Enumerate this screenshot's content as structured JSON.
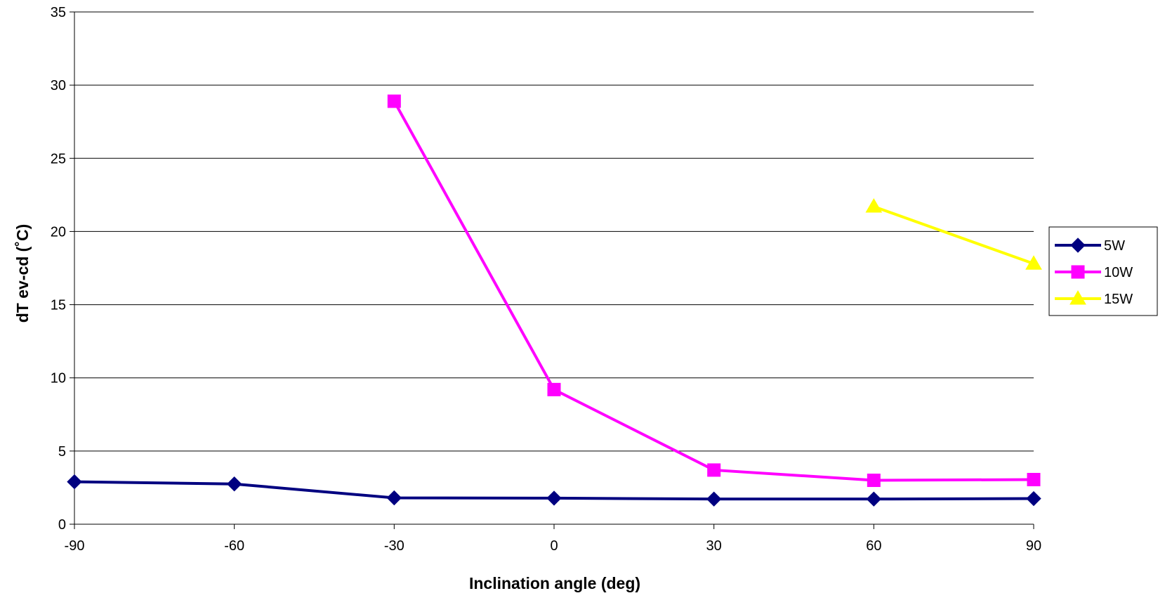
{
  "chart_data": {
    "type": "line",
    "title": "",
    "xlabel": "Inclination angle (deg)",
    "ylabel": "dT ev-cd (˚C)",
    "x": [
      -90,
      -60,
      -30,
      0,
      30,
      60,
      90
    ],
    "xlim": [
      -90,
      90
    ],
    "ylim": [
      0,
      35
    ],
    "x_ticks": [
      "-90",
      "-60",
      "-30",
      "0",
      "30",
      "60",
      "90"
    ],
    "y_ticks": [
      "0",
      "5",
      "10",
      "15",
      "20",
      "25",
      "30",
      "35"
    ],
    "grid": "horizontal",
    "legend_position": "right",
    "series": [
      {
        "name": "5W",
        "color": "#000080",
        "marker": "diamond",
        "values": [
          2.9,
          2.75,
          1.8,
          1.78,
          1.72,
          1.72,
          1.75
        ]
      },
      {
        "name": "10W",
        "color": "#FF00FF",
        "marker": "square",
        "values": [
          null,
          null,
          28.9,
          9.2,
          3.7,
          3.0,
          3.05
        ]
      },
      {
        "name": "15W",
        "color": "#FFFF00",
        "marker": "triangle",
        "values": [
          null,
          null,
          null,
          null,
          null,
          21.7,
          17.8
        ]
      }
    ]
  }
}
